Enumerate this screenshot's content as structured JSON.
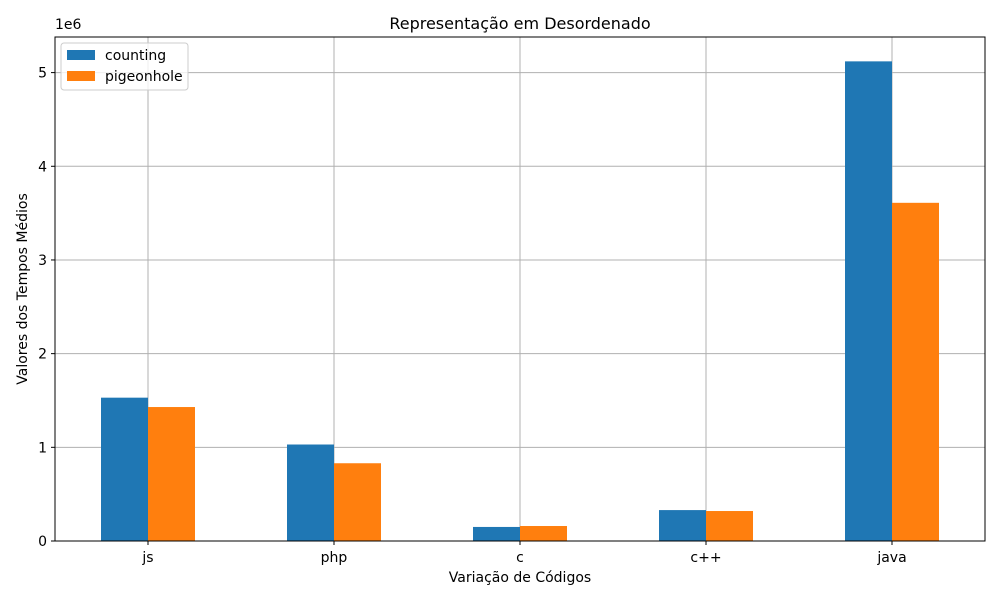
{
  "chart_data": {
    "type": "bar",
    "title": "Representação em Desordenado",
    "xlabel": "Variação de Códigos",
    "ylabel": "Valores dos Tempos Médios",
    "y_offset_label": "1e6",
    "categories": [
      "js",
      "php",
      "c",
      "c++",
      "java"
    ],
    "series": [
      {
        "name": "counting",
        "color": "#1f77b4",
        "values": [
          1530000,
          1030000,
          150000,
          330000,
          5120000
        ]
      },
      {
        "name": "pigeonhole",
        "color": "#ff7f0e",
        "values": [
          1430000,
          830000,
          160000,
          320000,
          3610000
        ]
      }
    ],
    "ylim": [
      0,
      5380000
    ],
    "yticks": [
      0,
      1000000,
      2000000,
      3000000,
      4000000,
      5000000
    ],
    "ytick_labels": [
      "0",
      "1",
      "2",
      "3",
      "4",
      "5"
    ],
    "grid": true,
    "legend_position": "top-left"
  }
}
